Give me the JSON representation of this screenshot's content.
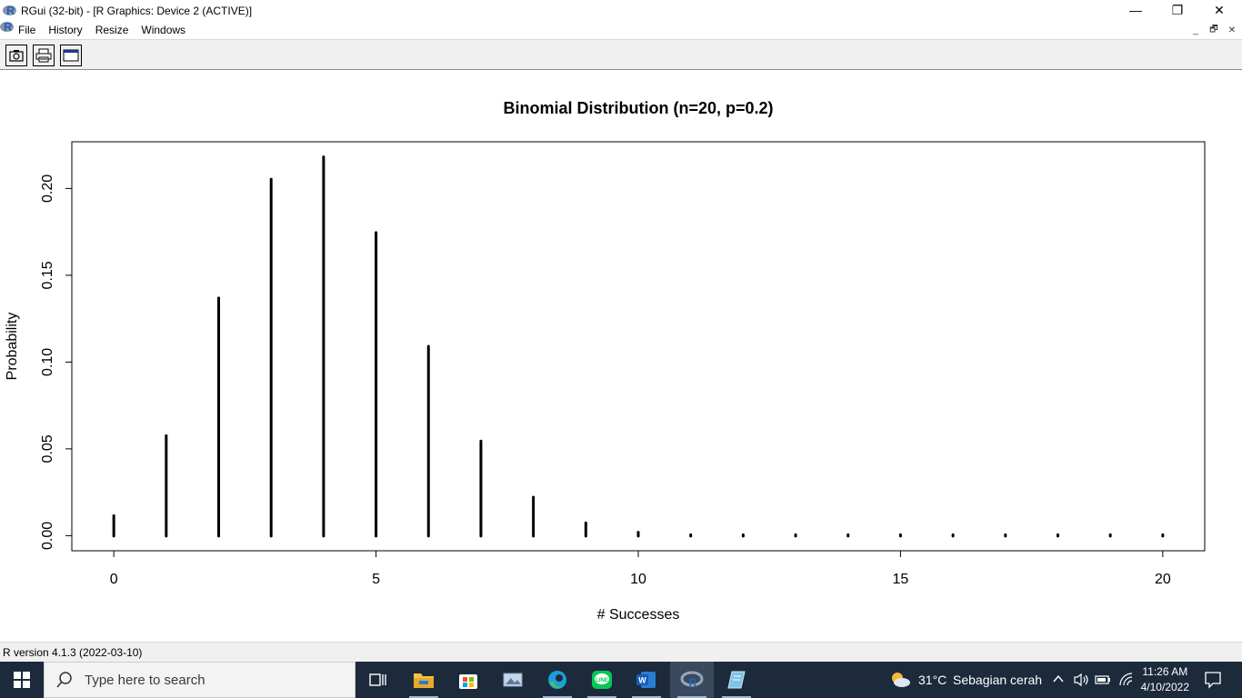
{
  "window": {
    "title": "RGui (32-bit) - [R Graphics: Device 2 (ACTIVE)]",
    "controls": {
      "minimize": "—",
      "maximize": "❐",
      "close": "✕"
    }
  },
  "menu": {
    "items": [
      "File",
      "History",
      "Resize",
      "Windows"
    ]
  },
  "mdi_controls": {
    "minimize": "_",
    "restore": "🗗",
    "close": "✕"
  },
  "toolbar": {
    "buttons": [
      {
        "name": "copy-as-metafile-button",
        "icon": "camera-icon"
      },
      {
        "name": "print-button",
        "icon": "printer-icon"
      },
      {
        "name": "console-button",
        "icon": "window-icon"
      }
    ]
  },
  "chart_data": {
    "type": "bar",
    "title": "Binomial Distribution (n=20, p=0.2)",
    "xlabel": "# Successes",
    "ylabel": "Probability",
    "x": [
      0,
      1,
      2,
      3,
      4,
      5,
      6,
      7,
      8,
      9,
      10,
      11,
      12,
      13,
      14,
      15,
      16,
      17,
      18,
      19,
      20
    ],
    "values": [
      0.0115,
      0.0576,
      0.1369,
      0.2054,
      0.2182,
      0.1746,
      0.1091,
      0.0545,
      0.0222,
      0.0074,
      0.002,
      0.0005,
      0.0001,
      0.0,
      0.0,
      0.0,
      0.0,
      0.0,
      0.0,
      0.0,
      0.0
    ],
    "xlim": [
      -0.8,
      20.8
    ],
    "ylim": [
      -0.0087,
      0.2269
    ],
    "xticks": [
      0,
      5,
      10,
      15,
      20
    ],
    "xtick_labels": [
      "0",
      "5",
      "10",
      "15",
      "20"
    ],
    "yticks": [
      0.0,
      0.05,
      0.1,
      0.15,
      0.2
    ],
    "ytick_labels": [
      "0.00",
      "0.05",
      "0.10",
      "0.15",
      "0.20"
    ],
    "grid": false,
    "color": "#000000"
  },
  "status": {
    "text": "R version 4.1.3 (2022-03-10)"
  },
  "taskbar": {
    "search_placeholder": "Type here to search",
    "apps": [
      "task-view",
      "file-explorer",
      "microsoft-store",
      "photos",
      "microsoft-edge",
      "line",
      "microsoft-word",
      "rgui",
      "notepad"
    ],
    "weather": {
      "temp": "31°C",
      "desc": "Sebagian cerah"
    },
    "clock": {
      "time": "11:26 AM",
      "date": "4/10/2022"
    },
    "accent": "#1c2a3c"
  }
}
